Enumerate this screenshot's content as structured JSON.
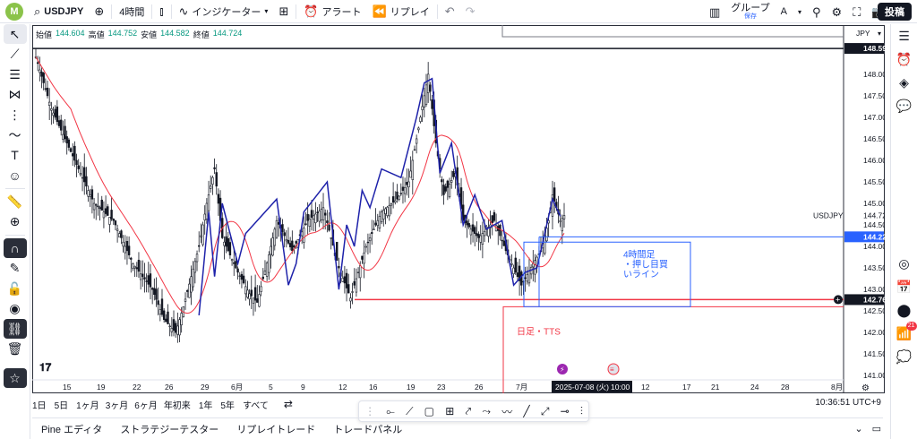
{
  "topbar": {
    "logo": "M",
    "symbol": "USDJPY",
    "interval": "4時間",
    "indicator_label": "インジケーター",
    "alert_label": "アラート",
    "replay_label": "リプレイ",
    "group_label": "グループ",
    "group_sub": "保存",
    "group_letter": "A",
    "post_label": "投稿"
  },
  "ohlc": {
    "open_label": "始値",
    "open": "144.604",
    "high_label": "高値",
    "high": "144.752",
    "low_label": "安値",
    "low": "144.582",
    "close_label": "終値",
    "close": "144.724"
  },
  "chart_data": {
    "type": "candlestick",
    "symbol": "USDJPY",
    "currency": "JPY",
    "y_axis_ticks": [
      "148.000",
      "147.500",
      "147.000",
      "146.500",
      "146.000",
      "145.500",
      "145.000",
      "144.500",
      "144.000",
      "143.500",
      "143.000",
      "142.500",
      "142.000",
      "141.500",
      "141.000"
    ],
    "ylim": [
      140.9,
      149.1
    ],
    "x_axis_ticks": [
      "15",
      "19",
      "22",
      "26",
      "29",
      "6月",
      "5",
      "9",
      "12",
      "16",
      "19",
      "23",
      "26",
      "7月",
      "12",
      "17",
      "21",
      "24",
      "28",
      "8月"
    ],
    "price_labels": [
      {
        "text": "148.599",
        "value": 148.599,
        "style": "black"
      },
      {
        "text": "USDJPY",
        "value": 144.724,
        "style": "symbol"
      },
      {
        "text": "144.724",
        "value": 144.724,
        "style": "plain"
      },
      {
        "text": "144.223",
        "value": 144.223,
        "style": "blue"
      },
      {
        "text": "142.764",
        "value": 142.764,
        "style": "black"
      }
    ],
    "crosshair_date": "2025-07-08 (火)",
    "crosshair_time": "10:00",
    "annotations": [
      {
        "text_lines": [
          "4時間足",
          "・押し目買",
          "いライン"
        ],
        "color": "#2962ff"
      },
      {
        "text": "日足・TTS",
        "color": "#f23645"
      }
    ],
    "series": [
      {
        "name": "",
        "kind": "candles",
        "color": "#131722"
      },
      {
        "name": "",
        "kind": "moving-average",
        "color": "#f23645"
      },
      {
        "name": "",
        "kind": "zigzag",
        "color": "#1e22aa"
      }
    ]
  },
  "range_bar": {
    "ranges": [
      "1日",
      "5日",
      "1ヶ月",
      "3ヶ月",
      "6ヶ月",
      "年初来",
      "1年",
      "5年",
      "すべて"
    ],
    "clock": "10:36:51 UTC+9"
  },
  "panels": [
    "Pine エディタ",
    "ストラテジーテスター",
    "リプレイトレード",
    "トレードパネル"
  ],
  "right_badge": "21"
}
